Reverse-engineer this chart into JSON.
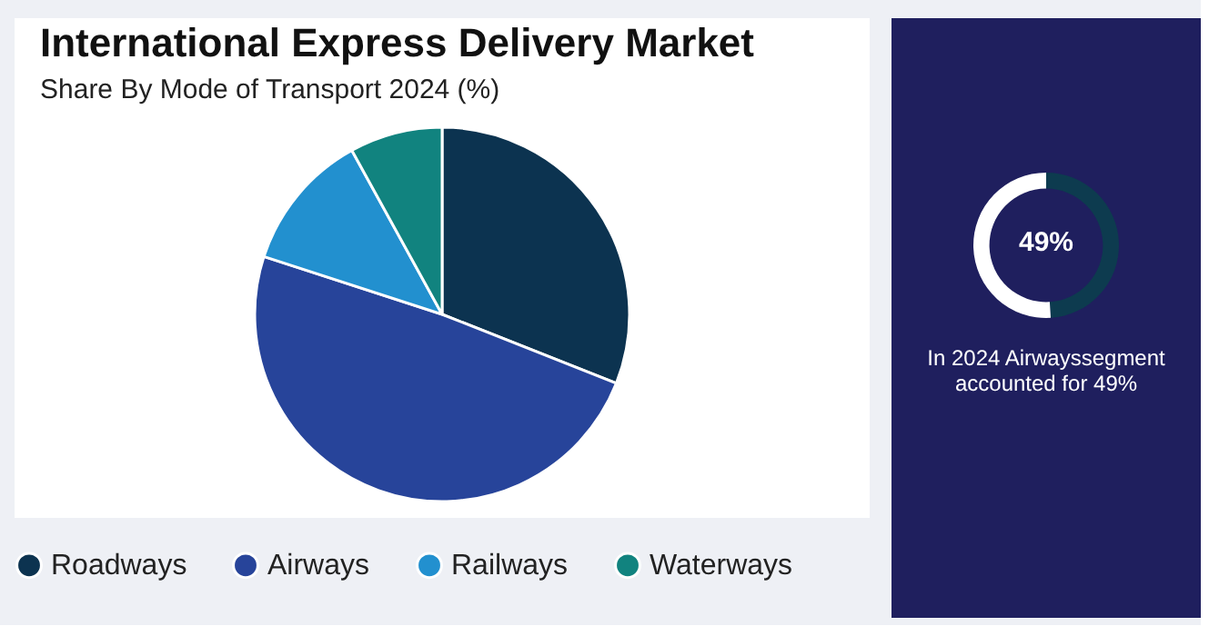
{
  "chart_data": [
    {
      "type": "pie",
      "title": "International Express Delivery Market",
      "subtitle": "Share By Mode of Transport 2024 (%)",
      "categories": [
        "Roadways",
        "Airways",
        "Railways",
        "Waterways"
      ],
      "values": [
        31,
        49,
        12,
        8
      ],
      "colors": [
        "#0c3350",
        "#27449a",
        "#2290cf",
        "#11837f"
      ],
      "legend": "bottom"
    },
    {
      "type": "donut",
      "categories": [
        null,
        null
      ],
      "values": [
        49,
        51
      ],
      "colors": [
        "#0d3b4f",
        "#ffffff"
      ],
      "annotations": [
        "49%",
        "In 2024 Airwayssegment accounted for 49%"
      ]
    }
  ]
}
